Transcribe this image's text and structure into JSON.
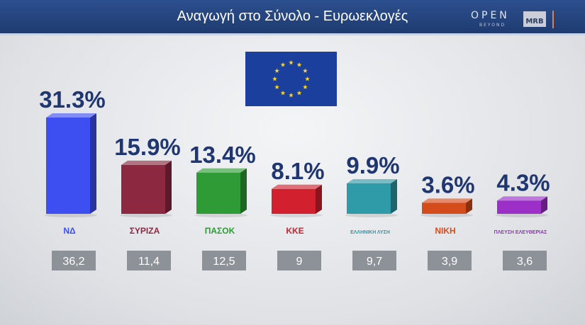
{
  "header": {
    "title": "Αναγωγή στο Σύνολο - Ευρωεκλογές",
    "brand_open": "OPEN",
    "brand_beyond": "BEYOND",
    "brand_mrb": "MRB"
  },
  "chart_data": {
    "type": "bar",
    "title": "Αναγωγή στο Σύνολο - Ευρωεκλογές",
    "ylim": [
      0,
      35
    ],
    "categories": [
      "ΝΔ",
      "ΣΥΡΙΖΑ",
      "ΠΑΣΟΚ",
      "ΚΚΕ",
      "ΕΛΛΗΝΙΚΗ ΛΥΣΗ",
      "ΝΙΚΗ",
      "ΠΛΕΥΣΗ ΕΛΕΥΘΕΡΙΑΣ"
    ],
    "series": [
      {
        "labels": [
          "31.3%",
          "15.9%",
          "13.4%",
          "8.1%",
          "9.9%",
          "3.6%",
          "4.3%"
        ],
        "values": [
          31.3,
          15.9,
          13.4,
          8.1,
          9.9,
          3.6,
          4.3
        ]
      }
    ],
    "previous": {
      "labels": [
        "36,2",
        "11,4",
        "12,5",
        "9",
        "9,7",
        "3,9",
        "3,6"
      ],
      "values": [
        36.2,
        11.4,
        12.5,
        9,
        9.7,
        3.9,
        3.6
      ]
    },
    "colors": [
      "#3d4ff0",
      "#8c2840",
      "#2f9b36",
      "#d2202e",
      "#2f9aa8",
      "#d44c1c",
      "#9b2fc8"
    ],
    "party_logo_text": [
      "ΝΔ",
      "ΣΥΡΙΖΑ",
      "ΠΑΣΟΚ",
      "ΚΚΕ",
      "ΕΛΛΗΝΙΚΗ ΛΥΣΗ",
      "ΝΙΚΗ",
      "ΠΛΕΥΣΗ ΕΛΕΥΘΕΡΙΑΣ"
    ],
    "grid": false,
    "legend": "none"
  }
}
